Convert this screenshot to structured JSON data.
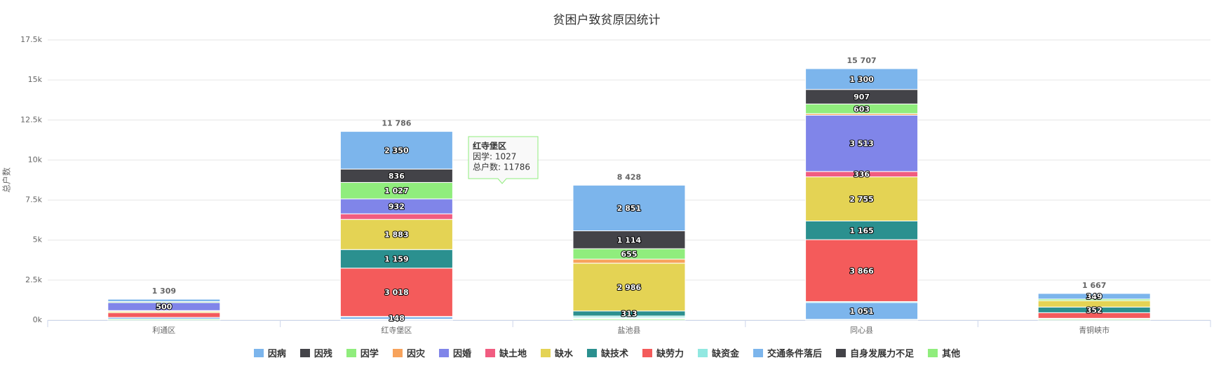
{
  "chart_data": {
    "type": "stacked-bar",
    "title": "贫困户致贫原因统计",
    "y_label": "总户数",
    "categories": [
      "利通区",
      "红寺堡区",
      "盐池县",
      "同心县",
      "青铜峡市"
    ],
    "ylim": [
      0,
      17500
    ],
    "yticks": [
      {
        "value": 0,
        "label": "0k"
      },
      {
        "value": 2500,
        "label": "2.5k"
      },
      {
        "value": 5000,
        "label": "5k"
      },
      {
        "value": 7500,
        "label": "7.5k"
      },
      {
        "value": 10000,
        "label": "10k"
      },
      {
        "value": 12500,
        "label": "12.5k"
      },
      {
        "value": 15000,
        "label": "15k"
      },
      {
        "value": 17500,
        "label": "17.5k"
      }
    ],
    "grid": true,
    "series": [
      {
        "name": "因病",
        "color": "#7cb5ec",
        "values": [
          150,
          2350,
          2851,
          1300,
          349
        ],
        "value_labels": [
          null,
          "2 350",
          "2 851",
          "1 300",
          "349"
        ]
      },
      {
        "name": "因残",
        "color": "#434348",
        "values": [
          0,
          836,
          1114,
          907,
          0
        ],
        "value_labels": [
          null,
          "836",
          "1 114",
          "907",
          null
        ]
      },
      {
        "name": "因学",
        "color": "#90ed7d",
        "values": [
          60,
          1027,
          655,
          603,
          100
        ],
        "value_labels": [
          null,
          "1 027",
          "655",
          "603",
          null
        ]
      },
      {
        "name": "因灾",
        "color": "#f7a35c",
        "values": [
          0,
          0,
          250,
          100,
          0
        ]
      },
      {
        "name": "因婚",
        "color": "#8085e9",
        "values": [
          500,
          932,
          0,
          3513,
          0
        ],
        "value_labels": [
          "500",
          "932",
          null,
          "3 513",
          null
        ]
      },
      {
        "name": "缺土地",
        "color": "#f15c80",
        "values": [
          50,
          350,
          0,
          336,
          0
        ],
        "value_labels": [
          null,
          null,
          null,
          "336",
          null
        ]
      },
      {
        "name": "缺水",
        "color": "#e4d354",
        "values": [
          80,
          1883,
          2986,
          2755,
          400
        ],
        "value_labels": [
          null,
          "1 883",
          "2 986",
          "2 755",
          null
        ]
      },
      {
        "name": "缺技术",
        "color": "#2b908f",
        "values": [
          0,
          1159,
          313,
          1165,
          352
        ],
        "value_labels": [
          null,
          "1 159",
          "313",
          "1 165",
          "352"
        ]
      },
      {
        "name": "缺劳力",
        "color": "#f45b5b",
        "values": [
          300,
          3018,
          0,
          3866,
          350
        ],
        "value_labels": [
          null,
          "3 018",
          null,
          "3 866",
          null
        ]
      },
      {
        "name": "缺资金",
        "color": "#91e8e1",
        "values": [
          0,
          23,
          100,
          61,
          0
        ]
      },
      {
        "name": "交通条件落后",
        "color": "#7cb5ec",
        "values": [
          100,
          148,
          50,
          1051,
          50
        ],
        "value_labels": [
          null,
          "148",
          null,
          "1 051",
          null
        ]
      },
      {
        "name": "自身发展力不足",
        "color": "#434348",
        "values": [
          0,
          20,
          29,
          0,
          0
        ]
      },
      {
        "name": "其他",
        "color": "#90ed7d",
        "values": [
          69,
          40,
          80,
          50,
          66
        ]
      }
    ],
    "stack_totals": {
      "values": [
        1309,
        11786,
        8428,
        15707,
        1667
      ],
      "value_labels": [
        "1 309",
        "11 786",
        "8 428",
        "15 707",
        "1 667"
      ]
    },
    "tooltip": {
      "title": "红寺堡区",
      "lines": [
        "因学: 1027",
        "总户数: 11786"
      ]
    }
  }
}
